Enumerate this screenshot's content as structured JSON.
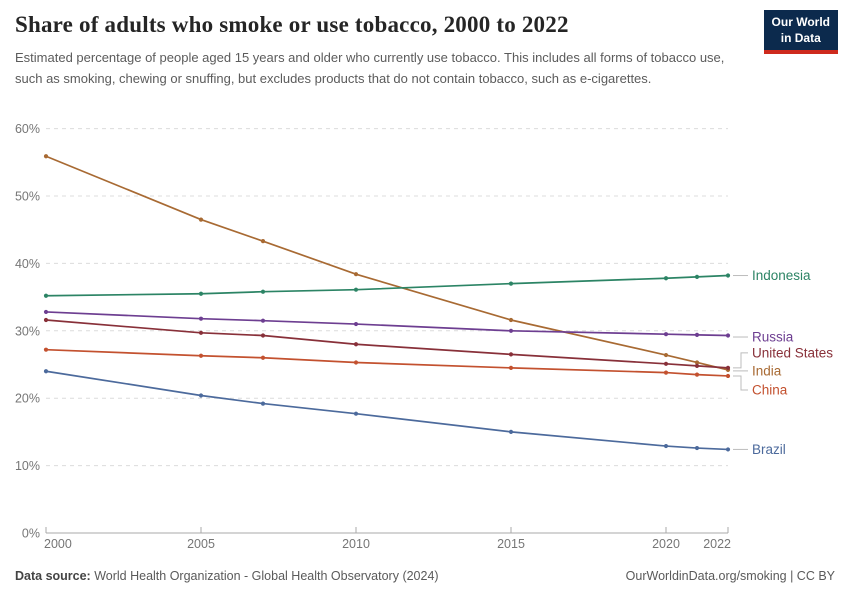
{
  "header": {
    "title": "Share of adults who smoke or use tobacco, 2000 to 2022",
    "subtitle": "Estimated percentage of people aged 15 years and older who currently use tobacco. This includes all forms of tobacco use, such as smoking, chewing or snuffing, but excludes products that do not contain tobacco, such as e-cigarettes.",
    "logo": {
      "line1": "Our World",
      "line2": "in Data",
      "bg_color": "#0C2A4D",
      "bar_color": "#CE2A1D"
    }
  },
  "chart_data": {
    "type": "line",
    "x": [
      2000,
      2005,
      2007,
      2010,
      2015,
      2020,
      2021,
      2022
    ],
    "series": [
      {
        "name": "India",
        "color": "#A86A33",
        "values": [
          55.9,
          46.5,
          43.3,
          38.4,
          31.6,
          26.4,
          25.3,
          24.2
        ],
        "label_dy": 1
      },
      {
        "name": "China",
        "color": "#C3512F",
        "values": [
          27.2,
          26.3,
          26.0,
          25.3,
          24.5,
          23.8,
          23.5,
          23.3
        ],
        "label_dy": 14
      },
      {
        "name": "Russia",
        "color": "#6D3E91",
        "values": [
          32.8,
          31.8,
          31.5,
          31.0,
          30.0,
          29.5,
          29.4,
          29.3
        ],
        "label_dy": 1.5
      },
      {
        "name": "United States",
        "color": "#883039",
        "values": [
          31.6,
          29.7,
          29.3,
          28.0,
          26.5,
          25.1,
          24.8,
          24.5
        ],
        "label_dy": -15
      },
      {
        "name": "Indonesia",
        "color": "#2C8465",
        "values": [
          35.2,
          35.5,
          35.8,
          36.1,
          37.0,
          37.8,
          38.0,
          38.2
        ],
        "label_dy": 0
      },
      {
        "name": "Brazil",
        "color": "#4C6A9C",
        "values": [
          24.0,
          20.4,
          19.2,
          17.7,
          15.0,
          12.9,
          12.6,
          12.4
        ],
        "label_dy": 0
      }
    ],
    "title": "Share of adults who smoke or use tobacco, 2000 to 2022",
    "xlabel": "",
    "ylabel": "",
    "ylim": [
      0,
      60
    ],
    "yticks": [
      0,
      10,
      20,
      30,
      40,
      50,
      60
    ],
    "ytick_suffix": "%",
    "xticks": [
      2000,
      2005,
      2010,
      2015,
      2020,
      2022
    ],
    "grid": true,
    "legend_position": "right-end-labels"
  },
  "footer": {
    "source_label": "Data source:",
    "source_text": " World Health Organization - Global Health Observatory (2024)",
    "credit": "OurWorldinData.org/smoking | CC BY"
  }
}
